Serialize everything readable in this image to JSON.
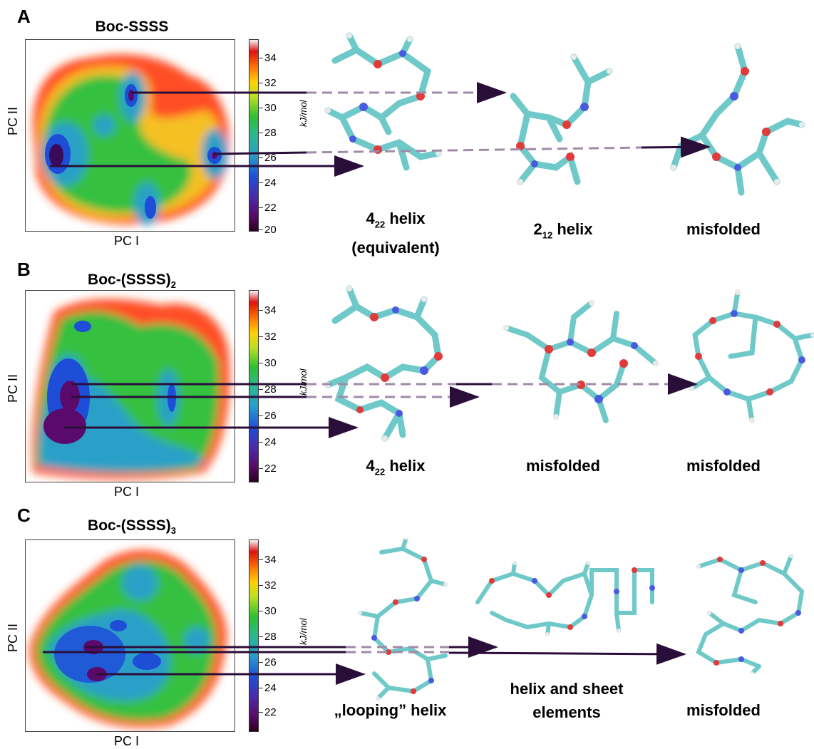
{
  "axes": {
    "pc1": "PC I",
    "pc2": "PC II"
  },
  "colorbar": {
    "unit_num": "kJ",
    "unit_den": "mol",
    "stops": [
      "#2a001f",
      "#5a0a6a",
      "#1e4dd8",
      "#2aa0c8",
      "#2ec030",
      "#b8e020",
      "#ffd000",
      "#ff7000",
      "#e01010",
      "#f5f5f5"
    ]
  },
  "panels": [
    {
      "letter": "A",
      "title_main": "Boc-SSSS",
      "title_sub": "",
      "ticks": [
        "34",
        "32",
        "30",
        "28",
        "26",
        "24",
        "22",
        "20"
      ],
      "labels": [
        {
          "main": "4",
          "sub": "22",
          "rest": " helix",
          "line2": "(equivalent)"
        },
        {
          "main": "2",
          "sub": "12",
          "rest": " helix",
          "line2": ""
        },
        {
          "main": "misfolded",
          "sub": "",
          "rest": "",
          "line2": ""
        }
      ]
    },
    {
      "letter": "B",
      "title_main": "Boc-(SSSS)",
      "title_sub": "2",
      "ticks": [
        "34",
        "32",
        "30",
        "28",
        "26",
        "24",
        "22"
      ],
      "labels": [
        {
          "main": "4",
          "sub": "22",
          "rest": " helix",
          "line2": ""
        },
        {
          "main": "misfolded",
          "sub": "",
          "rest": "",
          "line2": ""
        },
        {
          "main": "misfolded",
          "sub": "",
          "rest": "",
          "line2": ""
        }
      ]
    },
    {
      "letter": "C",
      "title_main": "Boc-(SSSS)",
      "title_sub": "3",
      "ticks": [
        "34",
        "32",
        "30",
        "28",
        "26",
        "24",
        "22"
      ],
      "labels": [
        {
          "main": "„looping” helix",
          "sub": "",
          "rest": "",
          "line2": ""
        },
        {
          "main": "helix and sheet",
          "sub": "",
          "rest": "",
          "line2": "elements"
        },
        {
          "main": "misfolded",
          "sub": "",
          "rest": "",
          "line2": ""
        }
      ]
    }
  ]
}
